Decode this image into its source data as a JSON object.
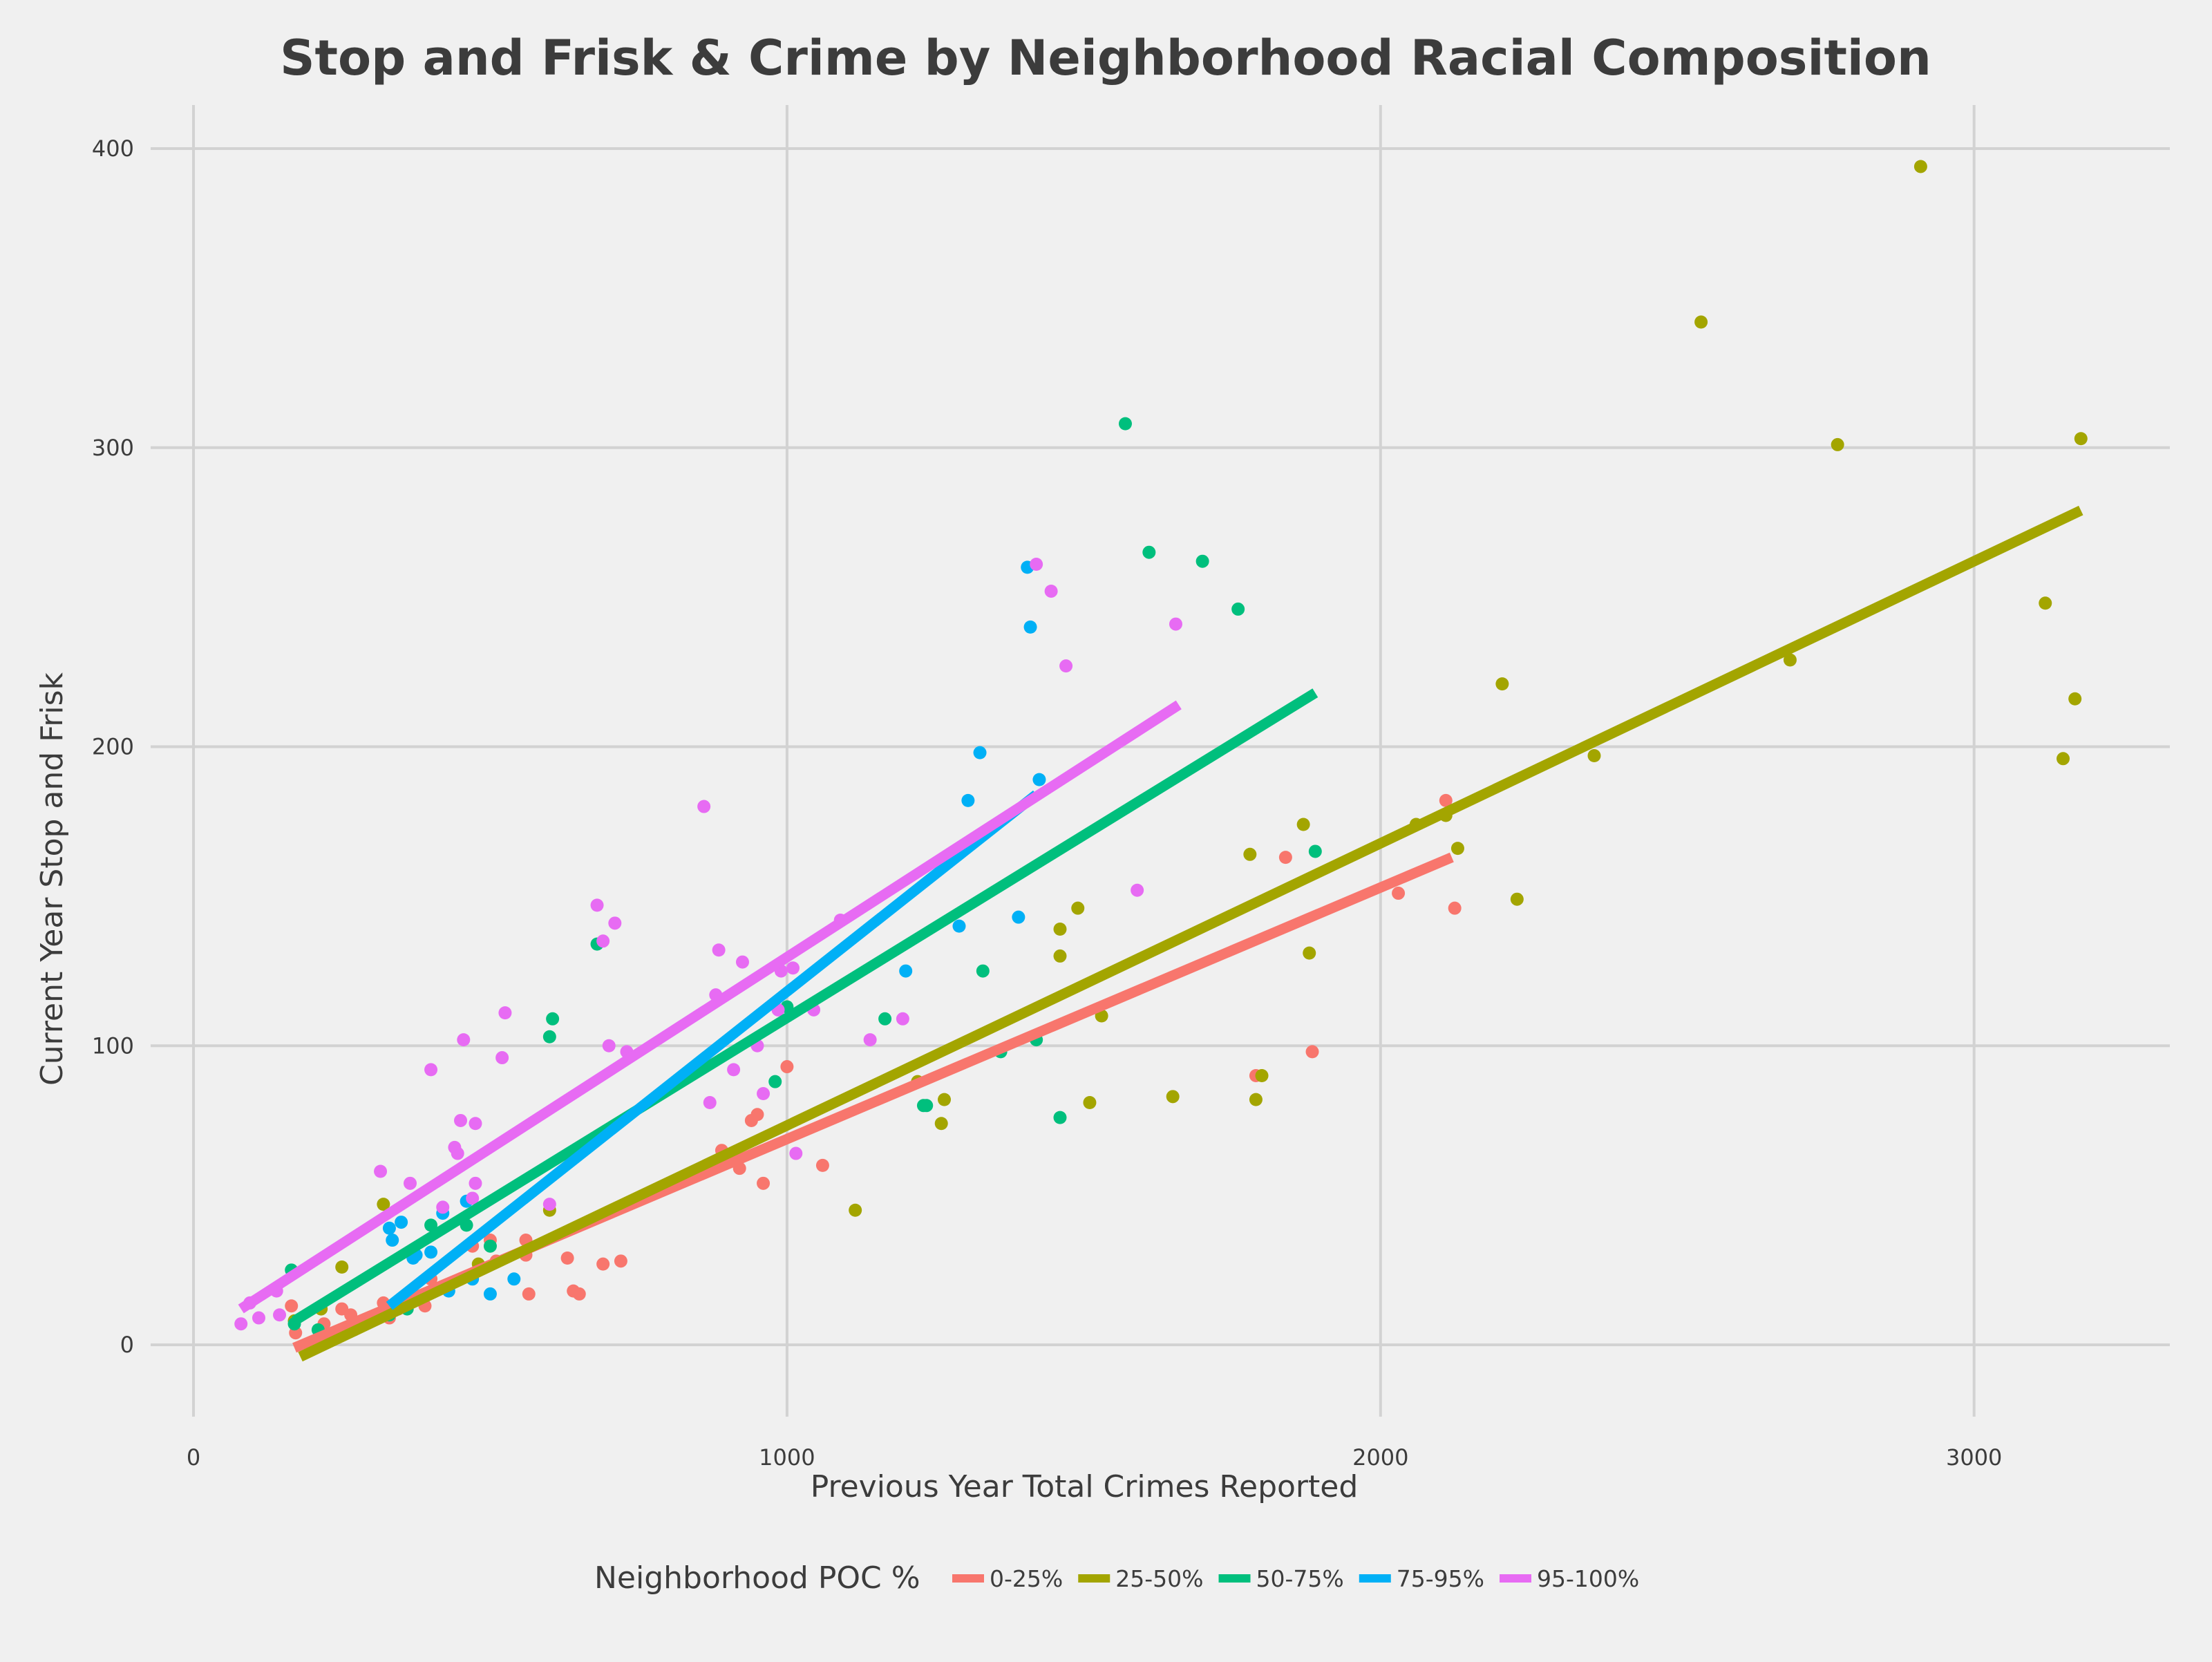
{
  "chart_data": {
    "type": "scatter",
    "title": "Stop and Frisk & Crime by Neighborhood Racial Composition",
    "xlabel": "Previous Year Total Crimes Reported",
    "ylabel": "Current Year Stop and Frisk",
    "xlim": [
      -80,
      3340
    ],
    "ylim": [
      -25,
      415
    ],
    "xticks": [
      0,
      1000,
      2000,
      3000
    ],
    "yticks": [
      0,
      100,
      200,
      300,
      400
    ],
    "grid": true,
    "legend": {
      "title": "Neighborhood POC %",
      "position": "bottom"
    },
    "series": [
      {
        "name": "0-25%",
        "color": "#F8766D",
        "fit": {
          "x": [
            170,
            2120
          ],
          "y": [
            -1,
            163
          ]
        },
        "points": [
          [
            165,
            13
          ],
          [
            172,
            4
          ],
          [
            220,
            7
          ],
          [
            250,
            12
          ],
          [
            265,
            10
          ],
          [
            320,
            14
          ],
          [
            330,
            9
          ],
          [
            345,
            12
          ],
          [
            360,
            14
          ],
          [
            390,
            13
          ],
          [
            400,
            22
          ],
          [
            470,
            33
          ],
          [
            500,
            35
          ],
          [
            510,
            28
          ],
          [
            560,
            30
          ],
          [
            565,
            17
          ],
          [
            560,
            35
          ],
          [
            630,
            29
          ],
          [
            640,
            18
          ],
          [
            650,
            17
          ],
          [
            690,
            27
          ],
          [
            720,
            28
          ],
          [
            890,
            65
          ],
          [
            920,
            59
          ],
          [
            940,
            75
          ],
          [
            950,
            77
          ],
          [
            960,
            54
          ],
          [
            1000,
            93
          ],
          [
            1060,
            60
          ],
          [
            1790,
            90
          ],
          [
            1840,
            163
          ],
          [
            1885,
            98
          ],
          [
            2030,
            151
          ],
          [
            2110,
            182
          ],
          [
            2125,
            146
          ]
        ]
      },
      {
        "name": "25-50%",
        "color": "#A3A500",
        "fit": {
          "x": [
            180,
            3180
          ],
          "y": [
            -4,
            279
          ]
        },
        "points": [
          [
            170,
            8
          ],
          [
            215,
            12
          ],
          [
            250,
            26
          ],
          [
            270,
            5
          ],
          [
            320,
            47
          ],
          [
            450,
            22
          ],
          [
            480,
            27
          ],
          [
            600,
            45
          ],
          [
            1115,
            45
          ],
          [
            1220,
            88
          ],
          [
            1265,
            82
          ],
          [
            1260,
            74
          ],
          [
            1460,
            139
          ],
          [
            1460,
            130
          ],
          [
            1490,
            146
          ],
          [
            1510,
            81
          ],
          [
            1530,
            110
          ],
          [
            1650,
            83
          ],
          [
            1780,
            164
          ],
          [
            1790,
            82
          ],
          [
            1800,
            90
          ],
          [
            1870,
            174
          ],
          [
            1880,
            131
          ],
          [
            2060,
            174
          ],
          [
            2110,
            177
          ],
          [
            2130,
            166
          ],
          [
            2205,
            221
          ],
          [
            2230,
            149
          ],
          [
            2360,
            197
          ],
          [
            2540,
            342
          ],
          [
            2690,
            229
          ],
          [
            2770,
            301
          ],
          [
            2910,
            394
          ],
          [
            3120,
            248
          ],
          [
            3150,
            196
          ],
          [
            3170,
            216
          ],
          [
            3180,
            303
          ]
        ]
      },
      {
        "name": "50-75%",
        "color": "#00BF7D",
        "fit": {
          "x": [
            170,
            1890
          ],
          "y": [
            8,
            218
          ]
        },
        "points": [
          [
            165,
            25
          ],
          [
            170,
            7
          ],
          [
            210,
            5
          ],
          [
            330,
            10
          ],
          [
            360,
            12
          ],
          [
            400,
            40
          ],
          [
            460,
            40
          ],
          [
            500,
            33
          ],
          [
            600,
            103
          ],
          [
            605,
            109
          ],
          [
            680,
            134
          ],
          [
            980,
            88
          ],
          [
            1000,
            113
          ],
          [
            1165,
            109
          ],
          [
            1230,
            80
          ],
          [
            1235,
            80
          ],
          [
            1330,
            125
          ],
          [
            1360,
            98
          ],
          [
            1420,
            102
          ],
          [
            1460,
            76
          ],
          [
            1570,
            308
          ],
          [
            1610,
            265
          ],
          [
            1700,
            262
          ],
          [
            1760,
            246
          ],
          [
            1890,
            165
          ]
        ]
      },
      {
        "name": "75-95%",
        "color": "#00B0F6",
        "fit": {
          "x": [
            330,
            1420
          ],
          "y": [
            13,
            184
          ]
        },
        "points": [
          [
            330,
            39
          ],
          [
            335,
            35
          ],
          [
            350,
            41
          ],
          [
            370,
            29
          ],
          [
            375,
            30
          ],
          [
            400,
            31
          ],
          [
            420,
            44
          ],
          [
            430,
            18
          ],
          [
            460,
            48
          ],
          [
            470,
            22
          ],
          [
            500,
            17
          ],
          [
            540,
            22
          ],
          [
            1200,
            125
          ],
          [
            1290,
            140
          ],
          [
            1305,
            182
          ],
          [
            1325,
            198
          ],
          [
            1390,
            143
          ],
          [
            1405,
            260
          ],
          [
            1410,
            240
          ],
          [
            1425,
            189
          ]
        ]
      },
      {
        "name": "95-100%",
        "color": "#E76BF3",
        "fit": {
          "x": [
            80,
            1660
          ],
          "y": [
            12,
            214
          ]
        },
        "points": [
          [
            80,
            7
          ],
          [
            95,
            14
          ],
          [
            110,
            9
          ],
          [
            140,
            18
          ],
          [
            145,
            10
          ],
          [
            315,
            58
          ],
          [
            365,
            54
          ],
          [
            400,
            92
          ],
          [
            420,
            46
          ],
          [
            440,
            66
          ],
          [
            445,
            64
          ],
          [
            450,
            75
          ],
          [
            455,
            102
          ],
          [
            470,
            49
          ],
          [
            475,
            54
          ],
          [
            475,
            74
          ],
          [
            520,
            96
          ],
          [
            525,
            111
          ],
          [
            600,
            47
          ],
          [
            680,
            147
          ],
          [
            690,
            135
          ],
          [
            700,
            100
          ],
          [
            710,
            141
          ],
          [
            730,
            98
          ],
          [
            860,
            180
          ],
          [
            870,
            81
          ],
          [
            880,
            117
          ],
          [
            885,
            132
          ],
          [
            910,
            92
          ],
          [
            925,
            128
          ],
          [
            950,
            100
          ],
          [
            960,
            84
          ],
          [
            985,
            112
          ],
          [
            990,
            125
          ],
          [
            1010,
            126
          ],
          [
            1015,
            64
          ],
          [
            1045,
            112
          ],
          [
            1090,
            142
          ],
          [
            1140,
            102
          ],
          [
            1195,
            109
          ],
          [
            1420,
            261
          ],
          [
            1445,
            252
          ],
          [
            1470,
            227
          ],
          [
            1590,
            152
          ],
          [
            1655,
            241
          ]
        ]
      }
    ]
  }
}
